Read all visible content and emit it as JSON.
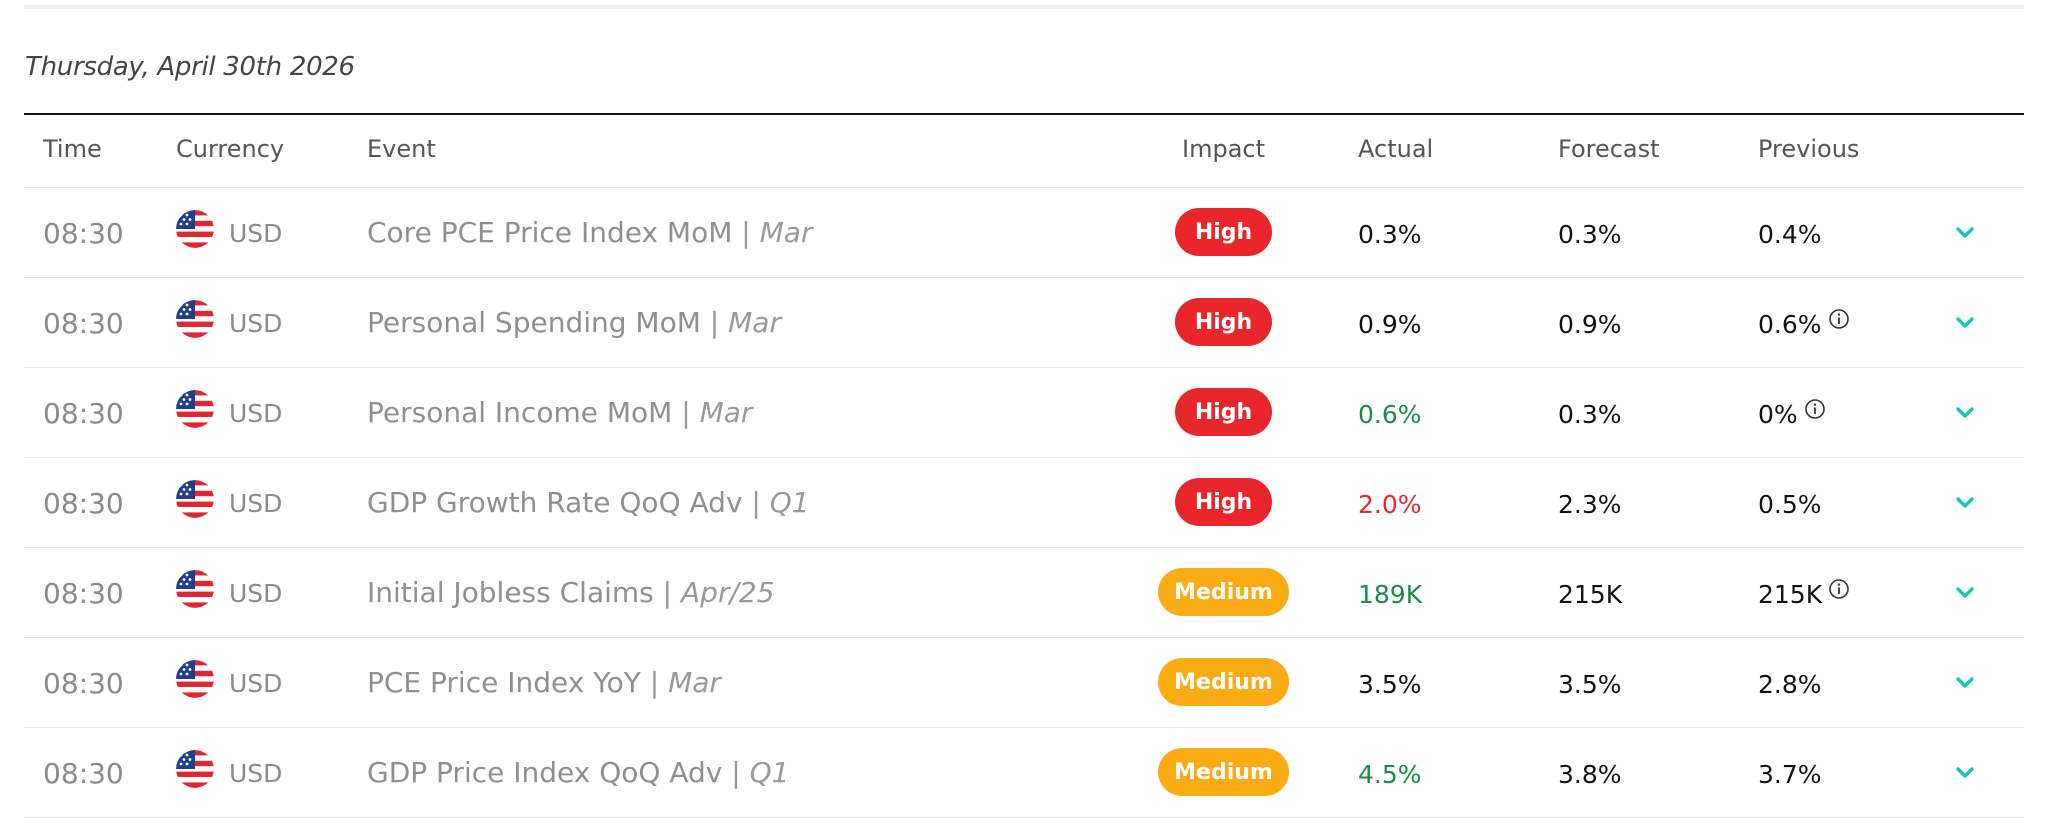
{
  "date_heading": "Thursday, April 30th 2026",
  "columns": {
    "time": "Time",
    "currency": "Currency",
    "event": "Event",
    "impact": "Impact",
    "actual": "Actual",
    "forecast": "Forecast",
    "previous": "Previous"
  },
  "colors": {
    "high": "#e8262b",
    "medium": "#fbac14",
    "positive": "#1a8a4c",
    "negative": "#e8262b",
    "chevron": "#14c8b4"
  },
  "rows": [
    {
      "time": "08:30",
      "currency": "USD",
      "event": "Core PCE Price Index MoM",
      "period": "Mar",
      "impact": "High",
      "actual": "0.3%",
      "actual_tone": "neutral",
      "forecast": "0.3%",
      "previous": "0.4%",
      "previous_info": false
    },
    {
      "time": "08:30",
      "currency": "USD",
      "event": "Personal Spending MoM",
      "period": "Mar",
      "impact": "High",
      "actual": "0.9%",
      "actual_tone": "neutral",
      "forecast": "0.9%",
      "previous": "0.6%",
      "previous_info": true
    },
    {
      "time": "08:30",
      "currency": "USD",
      "event": "Personal Income MoM",
      "period": "Mar",
      "impact": "High",
      "actual": "0.6%",
      "actual_tone": "positive",
      "forecast": "0.3%",
      "previous": "0%",
      "previous_info": true
    },
    {
      "time": "08:30",
      "currency": "USD",
      "event": "GDP Growth Rate QoQ Adv",
      "period": "Q1",
      "impact": "High",
      "actual": "2.0%",
      "actual_tone": "negative",
      "forecast": "2.3%",
      "previous": "0.5%",
      "previous_info": false
    },
    {
      "time": "08:30",
      "currency": "USD",
      "event": "Initial Jobless Claims",
      "period": "Apr/25",
      "impact": "Medium",
      "actual": "189K",
      "actual_tone": "positive",
      "forecast": "215K",
      "previous": "215K",
      "previous_info": true
    },
    {
      "time": "08:30",
      "currency": "USD",
      "event": "PCE Price Index YoY",
      "period": "Mar",
      "impact": "Medium",
      "actual": "3.5%",
      "actual_tone": "neutral",
      "forecast": "3.5%",
      "previous": "2.8%",
      "previous_info": false
    },
    {
      "time": "08:30",
      "currency": "USD",
      "event": "GDP Price Index QoQ Adv",
      "period": "Q1",
      "impact": "Medium",
      "actual": "4.5%",
      "actual_tone": "positive",
      "forecast": "3.8%",
      "previous": "3.7%",
      "previous_info": false
    }
  ]
}
